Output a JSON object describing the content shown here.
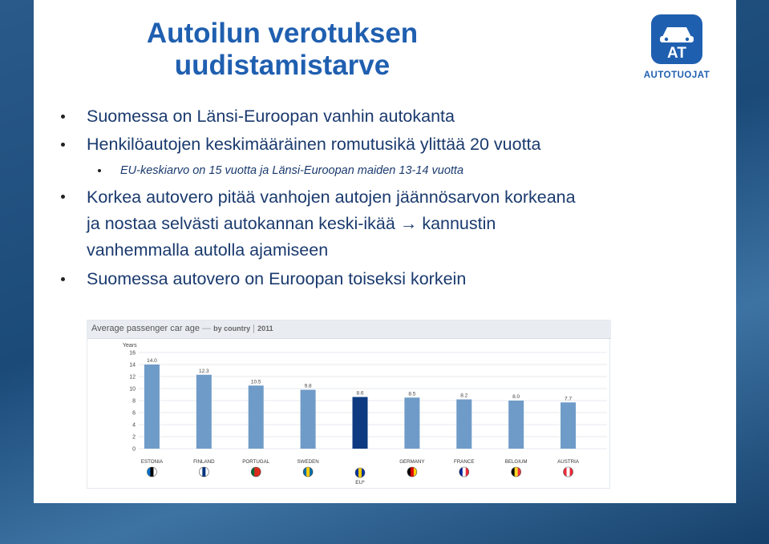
{
  "slide": {
    "title_line1": "Autoilun verotuksen",
    "title_line2": "uudistamistarve",
    "logo_text": "AUTOTUOJAT",
    "logo_letters": "AT",
    "bullets": [
      "Suomessa on Länsi-Euroopan vanhin autokanta",
      "Henkilöautojen keskimääräinen romutusikä ylittää 20 vuotta",
      "EU-keskiarvo on 15 vuotta ja Länsi-Euroopan maiden 13-14 vuotta",
      "Korkea autovero pitää vanhojen autojen jäännösarvon korkeana",
      "ja nostaa selvästi autokannan keski-ikää",
      "kannustin",
      "vanhemmalla autolla ajamiseen",
      "Suomessa autovero on Euroopan toiseksi korkein"
    ],
    "arrow": "→"
  },
  "chart_data": {
    "type": "bar",
    "title": "Average passenger car age",
    "subtitle": "by country",
    "year_label": "2011",
    "ylabel": "Years",
    "ylim": [
      0,
      16
    ],
    "yticks": [
      0,
      2,
      4,
      6,
      8,
      10,
      12,
      14,
      16
    ],
    "categories": [
      "ESTONIA",
      "FINLAND",
      "PORTUGAL",
      "SWEDEN",
      "EU*",
      "GERMANY",
      "FRANCE",
      "BELGIUM",
      "AUSTRIA"
    ],
    "values": [
      14.0,
      12.3,
      10.5,
      9.8,
      8.6,
      8.5,
      8.2,
      8.0,
      7.7
    ],
    "value_labels": [
      "14.0",
      "12.3",
      "10.5",
      "9.8",
      "8.6",
      "8.5",
      "8.2",
      "8.0",
      "7.7"
    ],
    "highlight_category": "EU*",
    "colors": {
      "bar": "#6f9bc8",
      "highlight": "#0d3a80",
      "grid": "#dde3ea"
    },
    "flags": [
      [
        "#0072ce",
        "#000000",
        "#ffffff"
      ],
      [
        "#ffffff",
        "#003580",
        "#ffffff"
      ],
      [
        "#046a38",
        "#da291c",
        "#da291c"
      ],
      [
        "#006aa7",
        "#fecc00",
        "#006aa7"
      ],
      [
        "#003399",
        "#ffcc00",
        "#003399"
      ],
      [
        "#000000",
        "#dd0000",
        "#ffce00"
      ],
      [
        "#002395",
        "#ffffff",
        "#ed2939"
      ],
      [
        "#000000",
        "#fdda24",
        "#ef3340"
      ],
      [
        "#ed2939",
        "#ffffff",
        "#ed2939"
      ]
    ],
    "grid": true,
    "legend": "none"
  }
}
